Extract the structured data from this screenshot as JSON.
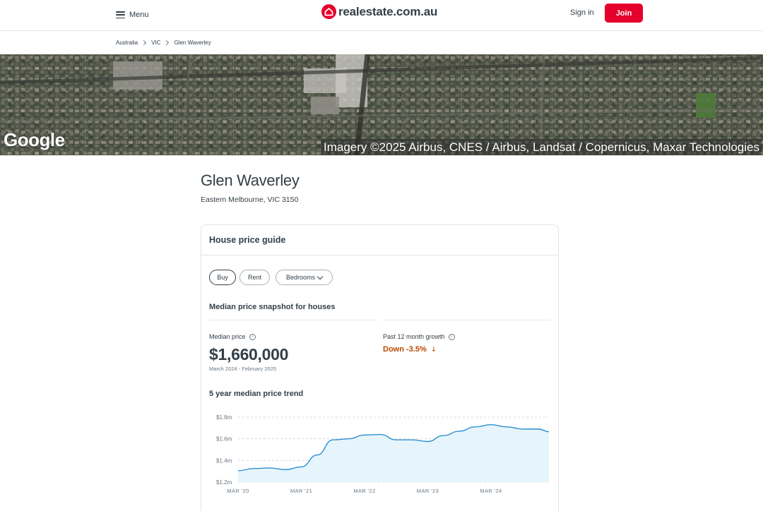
{
  "header": {
    "menu_label": "Menu",
    "logo_text": "realestate.com.au",
    "signin_label": "Sign in",
    "join_label": "Join"
  },
  "breadcrumb": [
    "Australia",
    "VIC",
    "Glen Waverley"
  ],
  "map": {
    "google_label": "Google",
    "attribution": "Imagery ©2025 Airbus, CNES / Airbus, Landsat / Copernicus, Maxar Technologies"
  },
  "suburb": {
    "name": "Glen Waverley",
    "subtitle": "Eastern Melbourne, VIC 3150"
  },
  "price_guide": {
    "title": "House price guide",
    "tabs": [
      {
        "label": "Buy",
        "active": true
      },
      {
        "label": "Rent",
        "active": false
      },
      {
        "label": "Bedrooms",
        "active": false
      }
    ],
    "snapshot_title": "Median price snapshot for houses",
    "median_label": "Median price",
    "median_value": "$1,660,000",
    "median_period": "March 2024 - February 2025",
    "growth_label": "Past 12 month growth",
    "growth_value": "Down -3.5%",
    "growth_color": "#b94a00",
    "trend_title": "5 year median price trend"
  },
  "colors": {
    "brand_red": "#e4002b",
    "line_blue": "#2a8fd0",
    "area_fill": "#e6f5fb",
    "text_dark": "#333f48"
  },
  "chart_data": {
    "type": "area",
    "x": [
      "2020-03",
      "2020-06",
      "2020-09",
      "2020-12",
      "2021-03",
      "2021-06",
      "2021-09",
      "2021-12",
      "2022-03",
      "2022-06",
      "2022-09",
      "2022-12",
      "2023-03",
      "2023-06",
      "2023-09",
      "2023-12",
      "2024-03",
      "2024-06",
      "2024-09",
      "2024-12",
      "2025-02"
    ],
    "values": [
      1.305,
      1.325,
      1.33,
      1.315,
      1.34,
      1.45,
      1.59,
      1.6,
      1.635,
      1.64,
      1.59,
      1.59,
      1.575,
      1.63,
      1.67,
      1.71,
      1.73,
      1.71,
      1.69,
      1.69,
      1.665
    ],
    "x_tick_labels": [
      "MAR '20",
      "MAR '21",
      "MAR '22",
      "MAR '23",
      "MAR '24"
    ],
    "y_tick_labels": [
      "$1.8m",
      "$1.6m",
      "$1.4m",
      "$1.2m"
    ],
    "y_ticks": [
      1.8,
      1.6,
      1.4,
      1.2
    ],
    "ylim": [
      1.2,
      1.8
    ],
    "grid": true,
    "title": "5 year median price trend",
    "xlabel": "",
    "ylabel": ""
  }
}
